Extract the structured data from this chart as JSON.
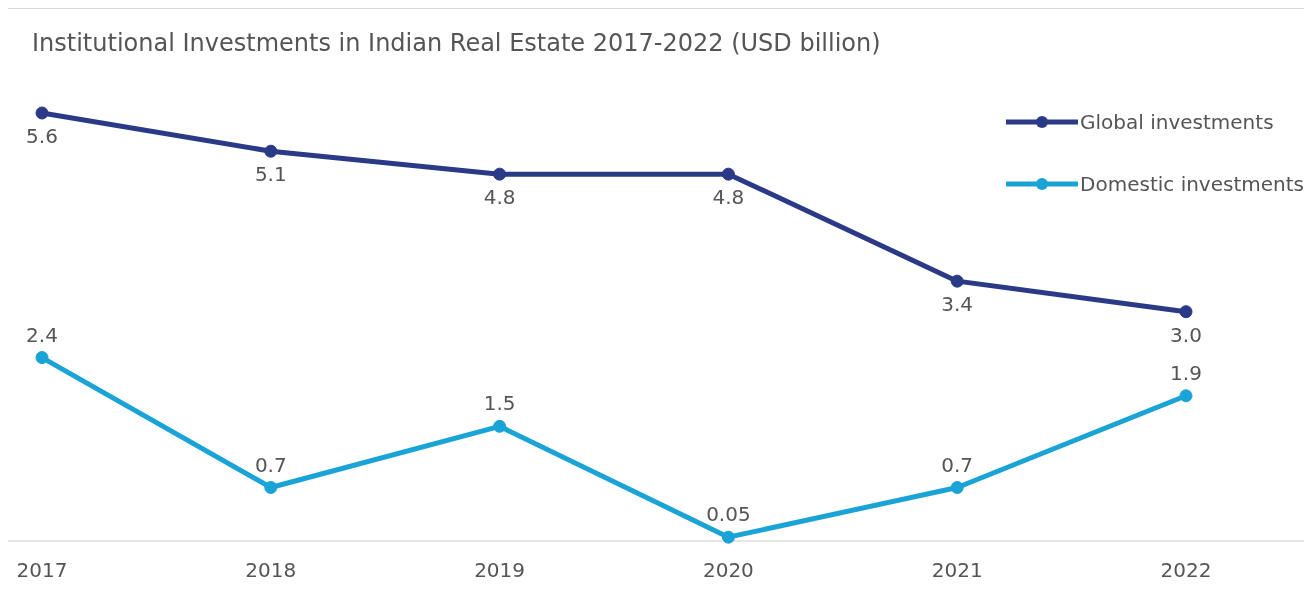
{
  "chart_data": {
    "type": "line",
    "title": "Institutional Investments in Indian Real Estate 2017-2022 (USD billion)",
    "categories": [
      "2017",
      "2018",
      "2019",
      "2020",
      "2021",
      "2022"
    ],
    "series": [
      {
        "name": "Global investments",
        "color": "#2b3a87",
        "values": [
          5.6,
          5.1,
          4.8,
          4.8,
          3.4,
          3.0
        ],
        "value_labels": [
          "5.6",
          "5.1",
          "4.8",
          "4.8",
          "3.4",
          "3.0"
        ]
      },
      {
        "name": "Domestic investments",
        "color": "#1aa3d6",
        "values": [
          2.4,
          0.7,
          1.5,
          0.05,
          0.7,
          1.9
        ],
        "value_labels": [
          "2.4",
          "0.7",
          "1.5",
          "0.05",
          "0.7",
          "1.9"
        ]
      }
    ],
    "legend": "top right",
    "marker": "circle",
    "line_style": "solid",
    "grid": false
  }
}
